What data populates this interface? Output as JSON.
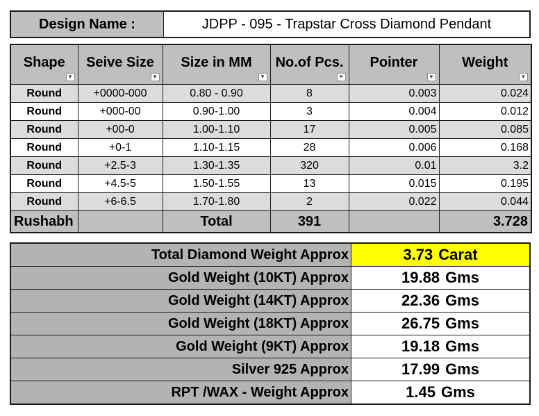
{
  "design": {
    "label": "Design Name :",
    "value": "JDPP - 095 - Trapstar Cross Diamond Pendant"
  },
  "headers": [
    "Shape",
    "Seive Size",
    "Size in MM",
    "No.of Pcs.",
    "Pointer",
    "Weight"
  ],
  "rows": [
    {
      "shape": "Round",
      "seive": "+0000-000",
      "mm": "0.80 - 0.90",
      "pcs": "8",
      "pointer": "0.003",
      "weight": "0.024"
    },
    {
      "shape": "Round",
      "seive": "+000-00",
      "mm": "0.90-1.00",
      "pcs": "3",
      "pointer": "0.004",
      "weight": "0.012"
    },
    {
      "shape": "Round",
      "seive": "+00-0",
      "mm": "1.00-1.10",
      "pcs": "17",
      "pointer": "0.005",
      "weight": "0.085"
    },
    {
      "shape": "Round",
      "seive": "+0-1",
      "mm": "1.10-1.15",
      "pcs": "28",
      "pointer": "0.006",
      "weight": "0.168"
    },
    {
      "shape": "Round",
      "seive": "+2.5-3",
      "mm": "1.30-1.35",
      "pcs": "320",
      "pointer": "0.01",
      "weight": "3.2"
    },
    {
      "shape": "Round",
      "seive": "+4.5-5",
      "mm": "1.50-1.55",
      "pcs": "13",
      "pointer": "0.015",
      "weight": "0.195"
    },
    {
      "shape": "Round",
      "seive": "+6-6.5",
      "mm": "1.70-1.80",
      "pcs": "2",
      "pointer": "0.022",
      "weight": "0.044"
    }
  ],
  "total": {
    "name": "Rushabh",
    "label": "Total",
    "pcs": "391",
    "weight": "3.728"
  },
  "summary": [
    {
      "label": "Total Diamond Weight Approx",
      "value": "3.73",
      "unit": "Carat"
    },
    {
      "label": "Gold Weight (10KT) Approx",
      "value": "19.88",
      "unit": "Gms"
    },
    {
      "label": "Gold Weight (14KT) Approx",
      "value": "22.36",
      "unit": "Gms"
    },
    {
      "label": "Gold Weight (18KT) Approx",
      "value": "26.75",
      "unit": "Gms"
    },
    {
      "label": "Gold Weight (9KT) Approx",
      "value": "19.18",
      "unit": "Gms"
    },
    {
      "label": "Silver 925 Approx",
      "value": "17.99",
      "unit": "Gms"
    },
    {
      "label": "RPT /WAX - Weight Approx",
      "value": "1.45",
      "unit": "Gms"
    }
  ],
  "colors": {
    "header_grey": "#bfbfbf",
    "row_grey": "#dcdcdc",
    "summary_label": "#b3b3b3",
    "highlight": "#ffff00"
  },
  "icons": {
    "filter_dropdown": "chevron-down-icon",
    "active_filter": "filter-icon"
  }
}
